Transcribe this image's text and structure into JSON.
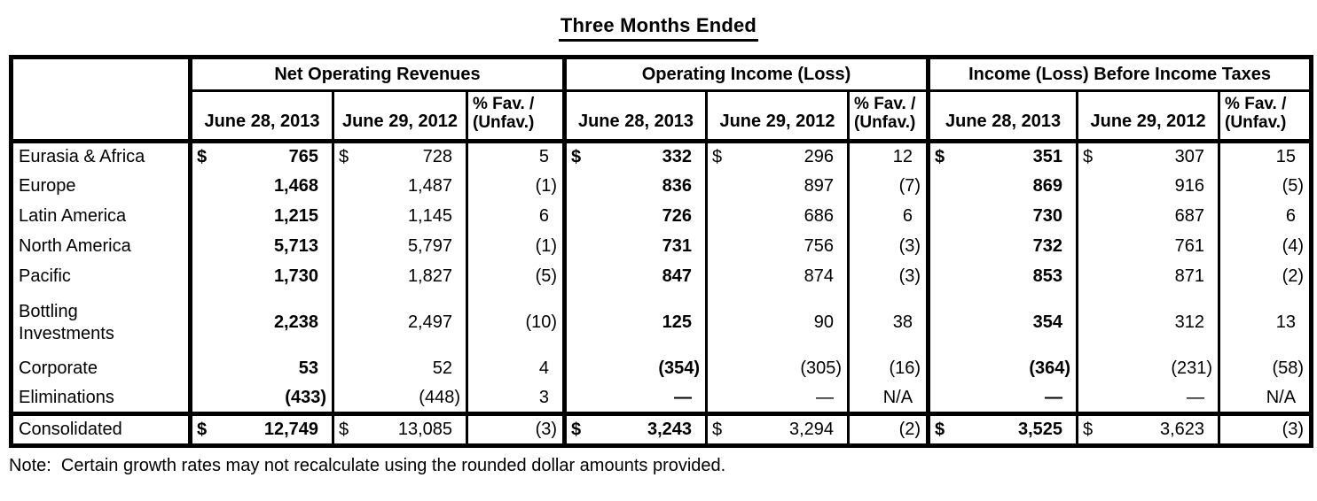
{
  "title": "Three Months Ended",
  "note": "Note:  Certain growth rates may not recalculate using the rounded dollar amounts provided.",
  "table": {
    "groups": [
      {
        "key": "net-operating-revenues",
        "label": "Net Operating Revenues"
      },
      {
        "key": "operating-income-loss",
        "label": "Operating Income (Loss)"
      },
      {
        "key": "income-loss-before-income-taxes",
        "label": "Income (Loss) Before Income Taxes"
      }
    ],
    "subheaders": {
      "y2013": "June 28, 2013",
      "y2012": "June 29, 2012",
      "pct_line1": "% Fav. /",
      "pct_line2": "(Unfav.)"
    },
    "rows": [
      {
        "label": "Eurasia & Africa",
        "total": false,
        "groups": [
          {
            "cur": "$",
            "y2013": "765",
            "y2012": "728",
            "pct": "5"
          },
          {
            "cur": "$",
            "y2013": "332",
            "y2012": "296",
            "pct": "12"
          },
          {
            "cur": "$",
            "y2013": "351",
            "y2012": "307",
            "pct": "15"
          }
        ]
      },
      {
        "label": "Europe",
        "total": false,
        "groups": [
          {
            "cur": "",
            "y2013": "1,468",
            "y2012": "1,487",
            "pct": "(1)"
          },
          {
            "cur": "",
            "y2013": "836",
            "y2012": "897",
            "pct": "(7)"
          },
          {
            "cur": "",
            "y2013": "869",
            "y2012": "916",
            "pct": "(5)"
          }
        ]
      },
      {
        "label": "Latin America",
        "total": false,
        "groups": [
          {
            "cur": "",
            "y2013": "1,215",
            "y2012": "1,145",
            "pct": "6"
          },
          {
            "cur": "",
            "y2013": "726",
            "y2012": "686",
            "pct": "6"
          },
          {
            "cur": "",
            "y2013": "730",
            "y2012": "687",
            "pct": "6"
          }
        ]
      },
      {
        "label": "North America",
        "total": false,
        "groups": [
          {
            "cur": "",
            "y2013": "5,713",
            "y2012": "5,797",
            "pct": "(1)"
          },
          {
            "cur": "",
            "y2013": "731",
            "y2012": "756",
            "pct": "(3)"
          },
          {
            "cur": "",
            "y2013": "732",
            "y2012": "761",
            "pct": "(4)"
          }
        ]
      },
      {
        "label": "Pacific",
        "total": false,
        "groups": [
          {
            "cur": "",
            "y2013": "1,730",
            "y2012": "1,827",
            "pct": "(5)"
          },
          {
            "cur": "",
            "y2013": "847",
            "y2012": "874",
            "pct": "(3)"
          },
          {
            "cur": "",
            "y2013": "853",
            "y2012": "871",
            "pct": "(2)"
          }
        ]
      },
      {
        "label": "Bottling\nInvestments",
        "total": false,
        "groups": [
          {
            "cur": "",
            "y2013": "2,238",
            "y2012": "2,497",
            "pct": "(10)"
          },
          {
            "cur": "",
            "y2013": "125",
            "y2012": "90",
            "pct": "38"
          },
          {
            "cur": "",
            "y2013": "354",
            "y2012": "312",
            "pct": "13"
          }
        ]
      },
      {
        "label": "Corporate",
        "total": false,
        "groups": [
          {
            "cur": "",
            "y2013": "53",
            "y2012": "52",
            "pct": "4"
          },
          {
            "cur": "",
            "y2013": "(354)",
            "y2012": "(305)",
            "pct": "(16)"
          },
          {
            "cur": "",
            "y2013": "(364)",
            "y2012": "(231)",
            "pct": "(58)"
          }
        ]
      },
      {
        "label": "Eliminations",
        "total": false,
        "groups": [
          {
            "cur": "",
            "y2013": "(433)",
            "y2012": "(448)",
            "pct": "3"
          },
          {
            "cur": "",
            "y2013": "—",
            "y2012": "—",
            "pct": "N/A"
          },
          {
            "cur": "",
            "y2013": "—",
            "y2012": "—",
            "pct": "N/A"
          }
        ]
      },
      {
        "label": "Consolidated",
        "total": true,
        "groups": [
          {
            "cur": "$",
            "y2013": "12,749",
            "y2012": "13,085",
            "pct": "(3)"
          },
          {
            "cur": "$",
            "y2013": "3,243",
            "y2012": "3,294",
            "pct": "(2)"
          },
          {
            "cur": "$",
            "y2013": "3,525",
            "y2012": "3,623",
            "pct": "(3)"
          }
        ]
      }
    ]
  }
}
